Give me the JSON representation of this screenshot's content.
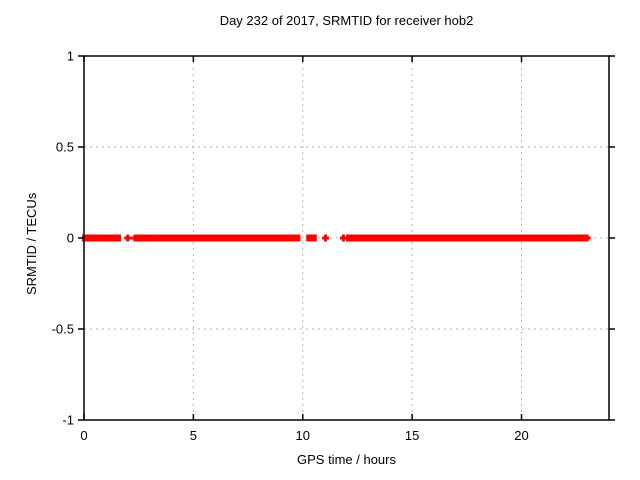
{
  "chart_data": {
    "type": "scatter",
    "title": "Day 232 of 2017, SRMTID for receiver hob2",
    "xlabel": "GPS time / hours",
    "ylabel": "SRMTID / TECUs",
    "xlim": [
      0,
      24
    ],
    "ylim": [
      -1,
      1
    ],
    "xticks": {
      "values": [
        0,
        5,
        10,
        15,
        20
      ],
      "labels": [
        "0",
        "5",
        "10",
        "15",
        "20"
      ]
    },
    "yticks": {
      "values": [
        1,
        0.5,
        0,
        -0.5,
        -1
      ],
      "labels": [
        "1",
        "0.5",
        "0",
        "-0.5",
        "-1"
      ]
    },
    "grid": true,
    "legend": "none",
    "series": [
      {
        "name": "SRMTID",
        "marker": "plus",
        "color": "#ff0000",
        "y_value": 0,
        "segments_hours": [
          [
            0.0,
            1.6
          ],
          [
            2.42,
            3.13
          ],
          [
            3.3,
            9.8
          ],
          [
            10.25,
            10.55
          ],
          [
            12.07,
            22.86
          ]
        ],
        "isolated_points_hours": [
          2.0,
          2.33,
          11.04,
          11.86,
          23.0
        ]
      }
    ],
    "colors": {
      "data": "#ff0000",
      "grid": "#b0b0b0",
      "axis": "#000000",
      "background": "#ffffff"
    }
  }
}
